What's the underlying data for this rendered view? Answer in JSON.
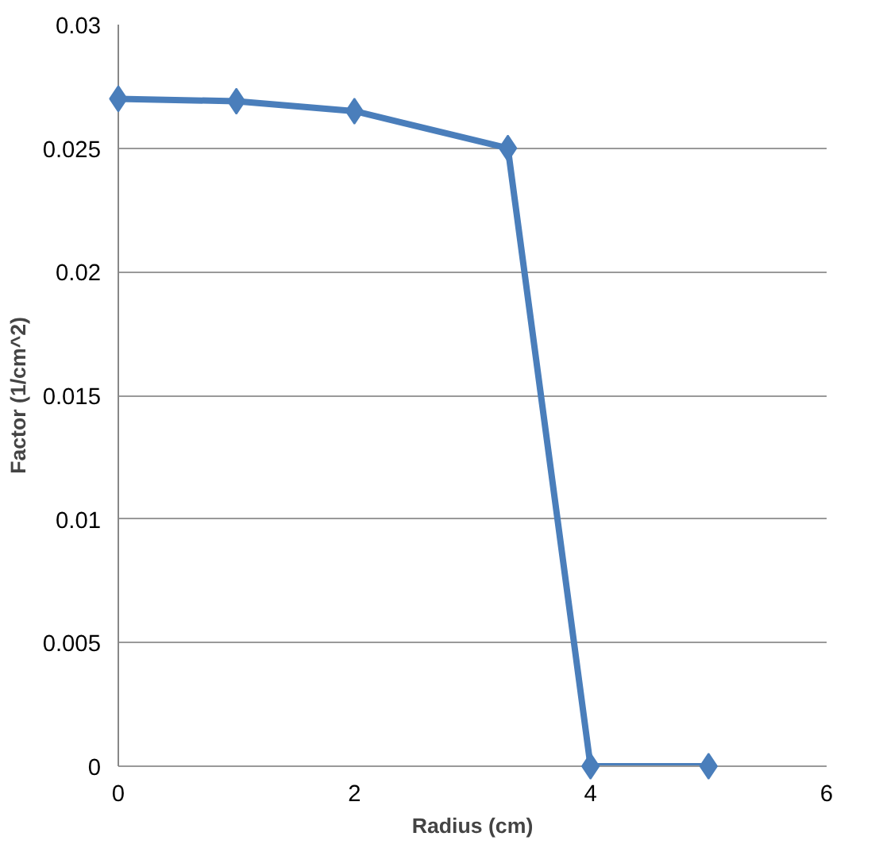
{
  "chart_data": {
    "type": "line",
    "xlabel": "Radius (cm)",
    "ylabel": "Factor (1/cm^2)",
    "x": [
      0,
      1,
      2,
      3.3,
      4,
      5
    ],
    "series": [
      {
        "color": "#4a7ebb",
        "values": [
          0.027,
          0.0269,
          0.0265,
          0.025,
          0,
          0
        ]
      }
    ],
    "xlim": [
      0,
      6
    ],
    "xticks": [
      0,
      2,
      4,
      6
    ],
    "ylim": [
      0,
      0.03
    ],
    "yticks": [
      0,
      0.005,
      0.01,
      0.015,
      0.02,
      0.025,
      0.03
    ],
    "grid": "y",
    "marker": "diamond",
    "line_style": "solid"
  }
}
